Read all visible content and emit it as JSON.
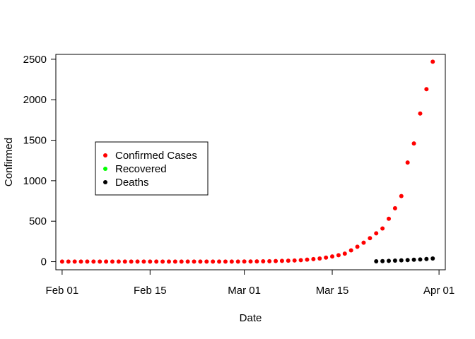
{
  "chart_data": {
    "type": "scatter",
    "title": "",
    "xlabel": "Date",
    "ylabel": "Confirmed",
    "x_type": "date",
    "xlim": [
      "2020-01-31",
      "2020-04-02"
    ],
    "ylim": [
      -100,
      2560
    ],
    "x_ticks": [
      {
        "date": "2020-02-01",
        "label": "Feb 01"
      },
      {
        "date": "2020-02-15",
        "label": "Feb 15"
      },
      {
        "date": "2020-03-01",
        "label": "Mar 01"
      },
      {
        "date": "2020-03-15",
        "label": "Mar 15"
      },
      {
        "date": "2020-04-01",
        "label": "Apr 01"
      }
    ],
    "y_ticks": [
      0,
      500,
      1000,
      1500,
      2000,
      2500
    ],
    "grid": false,
    "legend_position": "left",
    "series": [
      {
        "name": "Confirmed Cases",
        "color": "#ff0000",
        "x": [
          "2020-02-01",
          "2020-02-02",
          "2020-02-03",
          "2020-02-04",
          "2020-02-05",
          "2020-02-06",
          "2020-02-07",
          "2020-02-08",
          "2020-02-09",
          "2020-02-10",
          "2020-02-11",
          "2020-02-12",
          "2020-02-13",
          "2020-02-14",
          "2020-02-15",
          "2020-02-16",
          "2020-02-17",
          "2020-02-18",
          "2020-02-19",
          "2020-02-20",
          "2020-02-21",
          "2020-02-22",
          "2020-02-23",
          "2020-02-24",
          "2020-02-25",
          "2020-02-26",
          "2020-02-27",
          "2020-02-28",
          "2020-02-29",
          "2020-03-01",
          "2020-03-02",
          "2020-03-03",
          "2020-03-04",
          "2020-03-05",
          "2020-03-06",
          "2020-03-07",
          "2020-03-08",
          "2020-03-09",
          "2020-03-10",
          "2020-03-11",
          "2020-03-12",
          "2020-03-13",
          "2020-03-14",
          "2020-03-15",
          "2020-03-16",
          "2020-03-17",
          "2020-03-18",
          "2020-03-19",
          "2020-03-20",
          "2020-03-21",
          "2020-03-22",
          "2020-03-23",
          "2020-03-24",
          "2020-03-25",
          "2020-03-26",
          "2020-03-27",
          "2020-03-28",
          "2020-03-29",
          "2020-03-30",
          "2020-03-31"
        ],
        "y": [
          1,
          1,
          1,
          1,
          1,
          1,
          1,
          1,
          1,
          1,
          1,
          1,
          1,
          1,
          1,
          1,
          1,
          1,
          1,
          1,
          1,
          1,
          1,
          1,
          1,
          1,
          1,
          1,
          1,
          2,
          3,
          4,
          5,
          6,
          8,
          10,
          12,
          15,
          19,
          25,
          32,
          40,
          50,
          65,
          80,
          100,
          140,
          185,
          235,
          290,
          350,
          410,
          530,
          660,
          810,
          1225,
          1460,
          1830,
          2130,
          2470
        ]
      },
      {
        "name": "Recovered",
        "color": "#00ff00",
        "x": [],
        "y": []
      },
      {
        "name": "Deaths",
        "color": "#000000",
        "x": [
          "2020-03-22",
          "2020-03-23",
          "2020-03-24",
          "2020-03-25",
          "2020-03-26",
          "2020-03-27",
          "2020-03-28",
          "2020-03-29",
          "2020-03-30",
          "2020-03-31"
        ],
        "y": [
          5,
          7,
          10,
          13,
          17,
          20,
          24,
          28,
          33,
          40
        ]
      }
    ]
  }
}
